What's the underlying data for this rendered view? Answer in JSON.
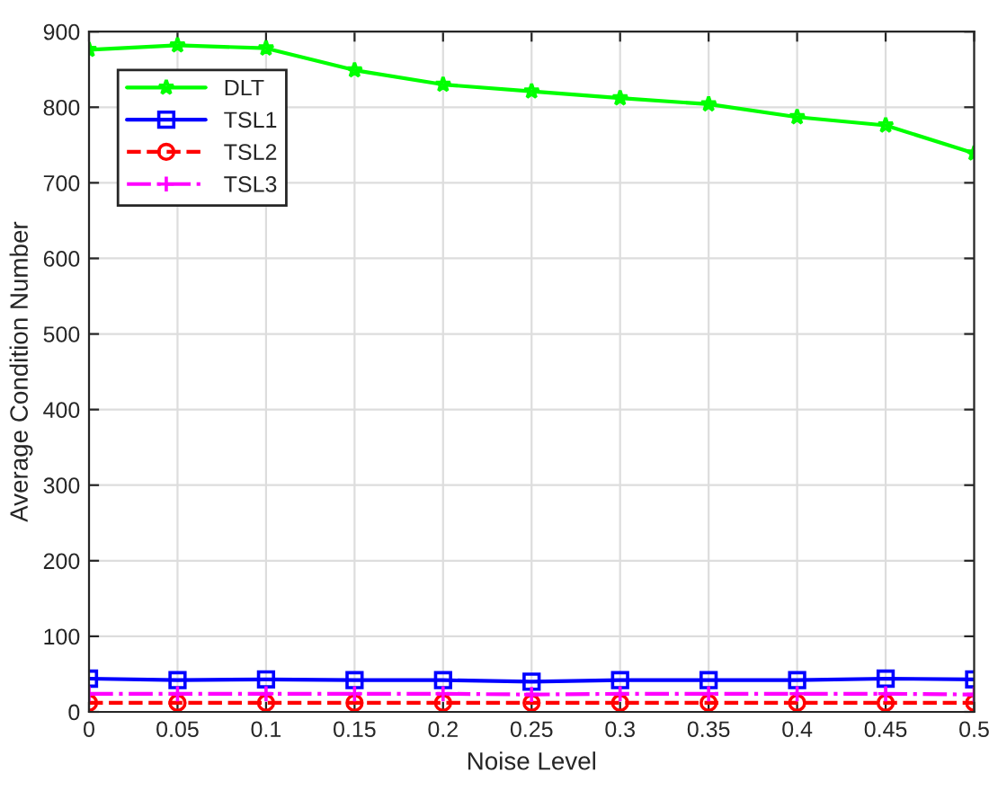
{
  "chart_data": {
    "type": "line",
    "xlabel": "Noise Level",
    "ylabel": "Average Condition Number",
    "x": [
      0,
      0.05,
      0.1,
      0.15,
      0.2,
      0.25,
      0.3,
      0.35,
      0.4,
      0.45,
      0.5
    ],
    "series": [
      {
        "name": "DLT",
        "color": "#00ff00",
        "marker": "star",
        "line_style": "solid",
        "values": [
          876,
          882,
          878,
          849,
          830,
          821,
          812,
          804,
          787,
          776,
          739
        ]
      },
      {
        "name": "TSL1",
        "color": "#0000ff",
        "marker": "square",
        "line_style": "solid",
        "values": [
          44,
          42,
          43,
          42,
          42,
          40,
          42,
          42,
          42,
          44,
          43
        ]
      },
      {
        "name": "TSL2",
        "color": "#ff0000",
        "marker": "circle",
        "line_style": "dashed",
        "values": [
          12,
          12,
          12,
          12,
          12,
          12,
          12,
          12,
          12,
          12,
          12
        ]
      },
      {
        "name": "TSL3",
        "color": "#ff00ff",
        "marker": "cross",
        "line_style": "dashdot",
        "values": [
          24,
          24,
          24,
          24,
          24,
          23,
          24,
          24,
          24,
          24,
          23
        ]
      }
    ],
    "xlim": [
      0,
      0.5
    ],
    "xticks": [
      0,
      0.05,
      0.1,
      0.15,
      0.2,
      0.25,
      0.3,
      0.35,
      0.4,
      0.45,
      0.5
    ],
    "ylim": [
      0,
      900
    ],
    "yticks": [
      0,
      100,
      200,
      300,
      400,
      500,
      600,
      700,
      800,
      900
    ],
    "grid": true,
    "legend": "top left"
  }
}
